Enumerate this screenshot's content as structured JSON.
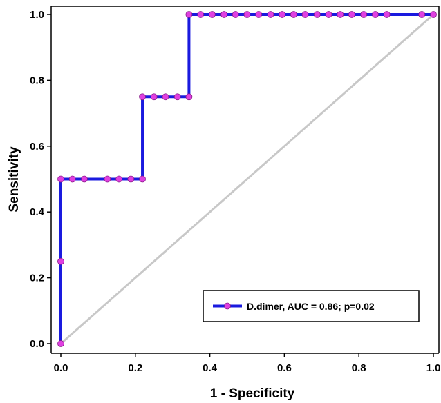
{
  "chart_data": {
    "type": "line",
    "title": "",
    "xlabel": "1 - Specificity",
    "ylabel": "Sensitivity",
    "xlim": [
      0,
      1
    ],
    "ylim": [
      0,
      1
    ],
    "x_ticks": [
      "0.0",
      "0.2",
      "0.4",
      "0.6",
      "0.8",
      "1.0"
    ],
    "y_ticks": [
      "0.0",
      "0.2",
      "0.4",
      "0.6",
      "0.8",
      "1.0"
    ],
    "grid": false,
    "legend_position": "bottom-right",
    "series": [
      {
        "name": "D.dimer, AUC = 0.86; p=0.02",
        "color": "#1a1adf",
        "marker_color": "#e040e0",
        "points": [
          {
            "x": 0.0,
            "y": 0.0
          },
          {
            "x": 0.0,
            "y": 0.25
          },
          {
            "x": 0.0,
            "y": 0.5
          },
          {
            "x": 0.031,
            "y": 0.5
          },
          {
            "x": 0.063,
            "y": 0.5
          },
          {
            "x": 0.125,
            "y": 0.5
          },
          {
            "x": 0.156,
            "y": 0.5
          },
          {
            "x": 0.188,
            "y": 0.5
          },
          {
            "x": 0.219,
            "y": 0.5
          },
          {
            "x": 0.219,
            "y": 0.75
          },
          {
            "x": 0.25,
            "y": 0.75
          },
          {
            "x": 0.281,
            "y": 0.75
          },
          {
            "x": 0.313,
            "y": 0.75
          },
          {
            "x": 0.344,
            "y": 0.75
          },
          {
            "x": 0.344,
            "y": 1.0
          },
          {
            "x": 0.375,
            "y": 1.0
          },
          {
            "x": 0.406,
            "y": 1.0
          },
          {
            "x": 0.438,
            "y": 1.0
          },
          {
            "x": 0.469,
            "y": 1.0
          },
          {
            "x": 0.5,
            "y": 1.0
          },
          {
            "x": 0.531,
            "y": 1.0
          },
          {
            "x": 0.563,
            "y": 1.0
          },
          {
            "x": 0.594,
            "y": 1.0
          },
          {
            "x": 0.625,
            "y": 1.0
          },
          {
            "x": 0.656,
            "y": 1.0
          },
          {
            "x": 0.688,
            "y": 1.0
          },
          {
            "x": 0.719,
            "y": 1.0
          },
          {
            "x": 0.75,
            "y": 1.0
          },
          {
            "x": 0.781,
            "y": 1.0
          },
          {
            "x": 0.813,
            "y": 1.0
          },
          {
            "x": 0.844,
            "y": 1.0
          },
          {
            "x": 0.875,
            "y": 1.0
          },
          {
            "x": 0.969,
            "y": 1.0
          },
          {
            "x": 1.0,
            "y": 1.0
          }
        ]
      }
    ],
    "reference_line": {
      "color": "#c8c8c8",
      "points": [
        [
          0,
          0
        ],
        [
          1,
          1
        ]
      ]
    }
  }
}
